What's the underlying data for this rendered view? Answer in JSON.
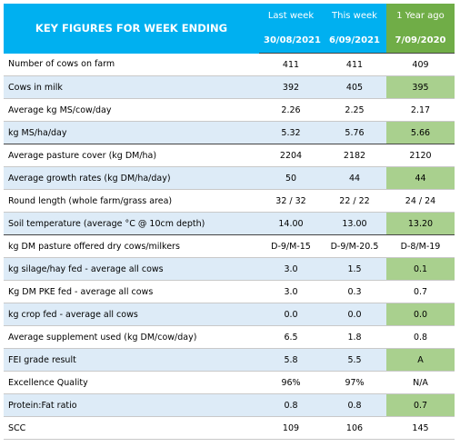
{
  "table": {
    "title": "KEY FIGURES FOR WEEK ENDING",
    "columns": [
      {
        "label": "Last week",
        "date": "30/08/2021"
      },
      {
        "label": "This week",
        "date": "6/09/2021"
      },
      {
        "label": "1 Year ago",
        "date": "7/09/2020"
      }
    ],
    "rows": [
      [
        "Number of cows on farm",
        "411",
        "411",
        "409"
      ],
      [
        "Cows in milk",
        "392",
        "405",
        "395"
      ],
      [
        "Average kg MS/cow/day",
        "2.26",
        "2.25",
        "2.17"
      ],
      [
        "kg MS/ha/day",
        "5.32",
        "5.76",
        "5.66"
      ],
      [
        "Average pasture cover (kg DM/ha)",
        "2204",
        "2182",
        "2120"
      ],
      [
        "Average growth rates (kg DM/ha/day)",
        "50",
        "44",
        "44"
      ],
      [
        "Round length (whole farm/grass area)",
        "32 / 32",
        "22 / 22",
        "24 / 24"
      ],
      [
        "Soil temperature (average °C @ 10cm depth)",
        "14.00",
        "13.00",
        "13.20"
      ],
      [
        "kg DM pasture offered dry cows/milkers",
        "D-9/M-15",
        "D-9/M-20.5",
        "D-8/M-19"
      ],
      [
        "kg silage/hay fed - average all cows",
        "3.0",
        "1.5",
        "0.1"
      ],
      [
        "Kg DM PKE fed - average all cows",
        "3.0",
        "0.3",
        "0.7"
      ],
      [
        "kg crop fed - average all cows",
        "0.0",
        "0.0",
        "0.0"
      ],
      [
        "Average supplement used (kg DM/cow/day)",
        "6.5",
        "1.8",
        "0.8"
      ],
      [
        "FEI grade result",
        "5.8",
        "5.5",
        "A"
      ],
      [
        "Excellence Quality",
        "96%",
        "97%",
        "N/A"
      ],
      [
        "Protein:Fat ratio",
        "0.8",
        "0.8",
        "0.7"
      ],
      [
        "SCC",
        "109",
        "106",
        "145"
      ]
    ]
  }
}
